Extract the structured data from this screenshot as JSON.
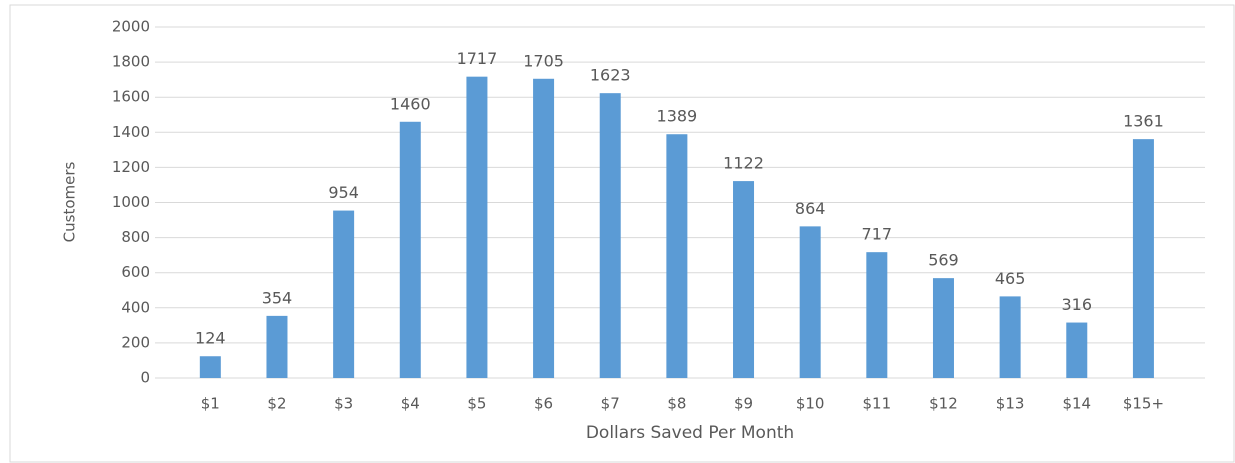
{
  "chart_data": {
    "type": "bar",
    "x_label": "Dollars Saved Per Month",
    "y_label": "Customers",
    "categories": [
      "$1",
      "$2",
      "$3",
      "$4",
      "$5",
      "$6",
      "$7",
      "$8",
      "$9",
      "$10",
      "$11",
      "$12",
      "$13",
      "$14",
      "$15+"
    ],
    "values": [
      124,
      354,
      954,
      1460,
      1717,
      1705,
      1623,
      1389,
      1122,
      864,
      717,
      569,
      465,
      316,
      1361
    ],
    "color": "#5b9bd5",
    "ylim": [
      0,
      2000
    ],
    "yticks": [
      0,
      200,
      400,
      600,
      800,
      1000,
      1200,
      1400,
      1600,
      1800,
      2000
    ],
    "grid": true,
    "data_labels": true
  }
}
